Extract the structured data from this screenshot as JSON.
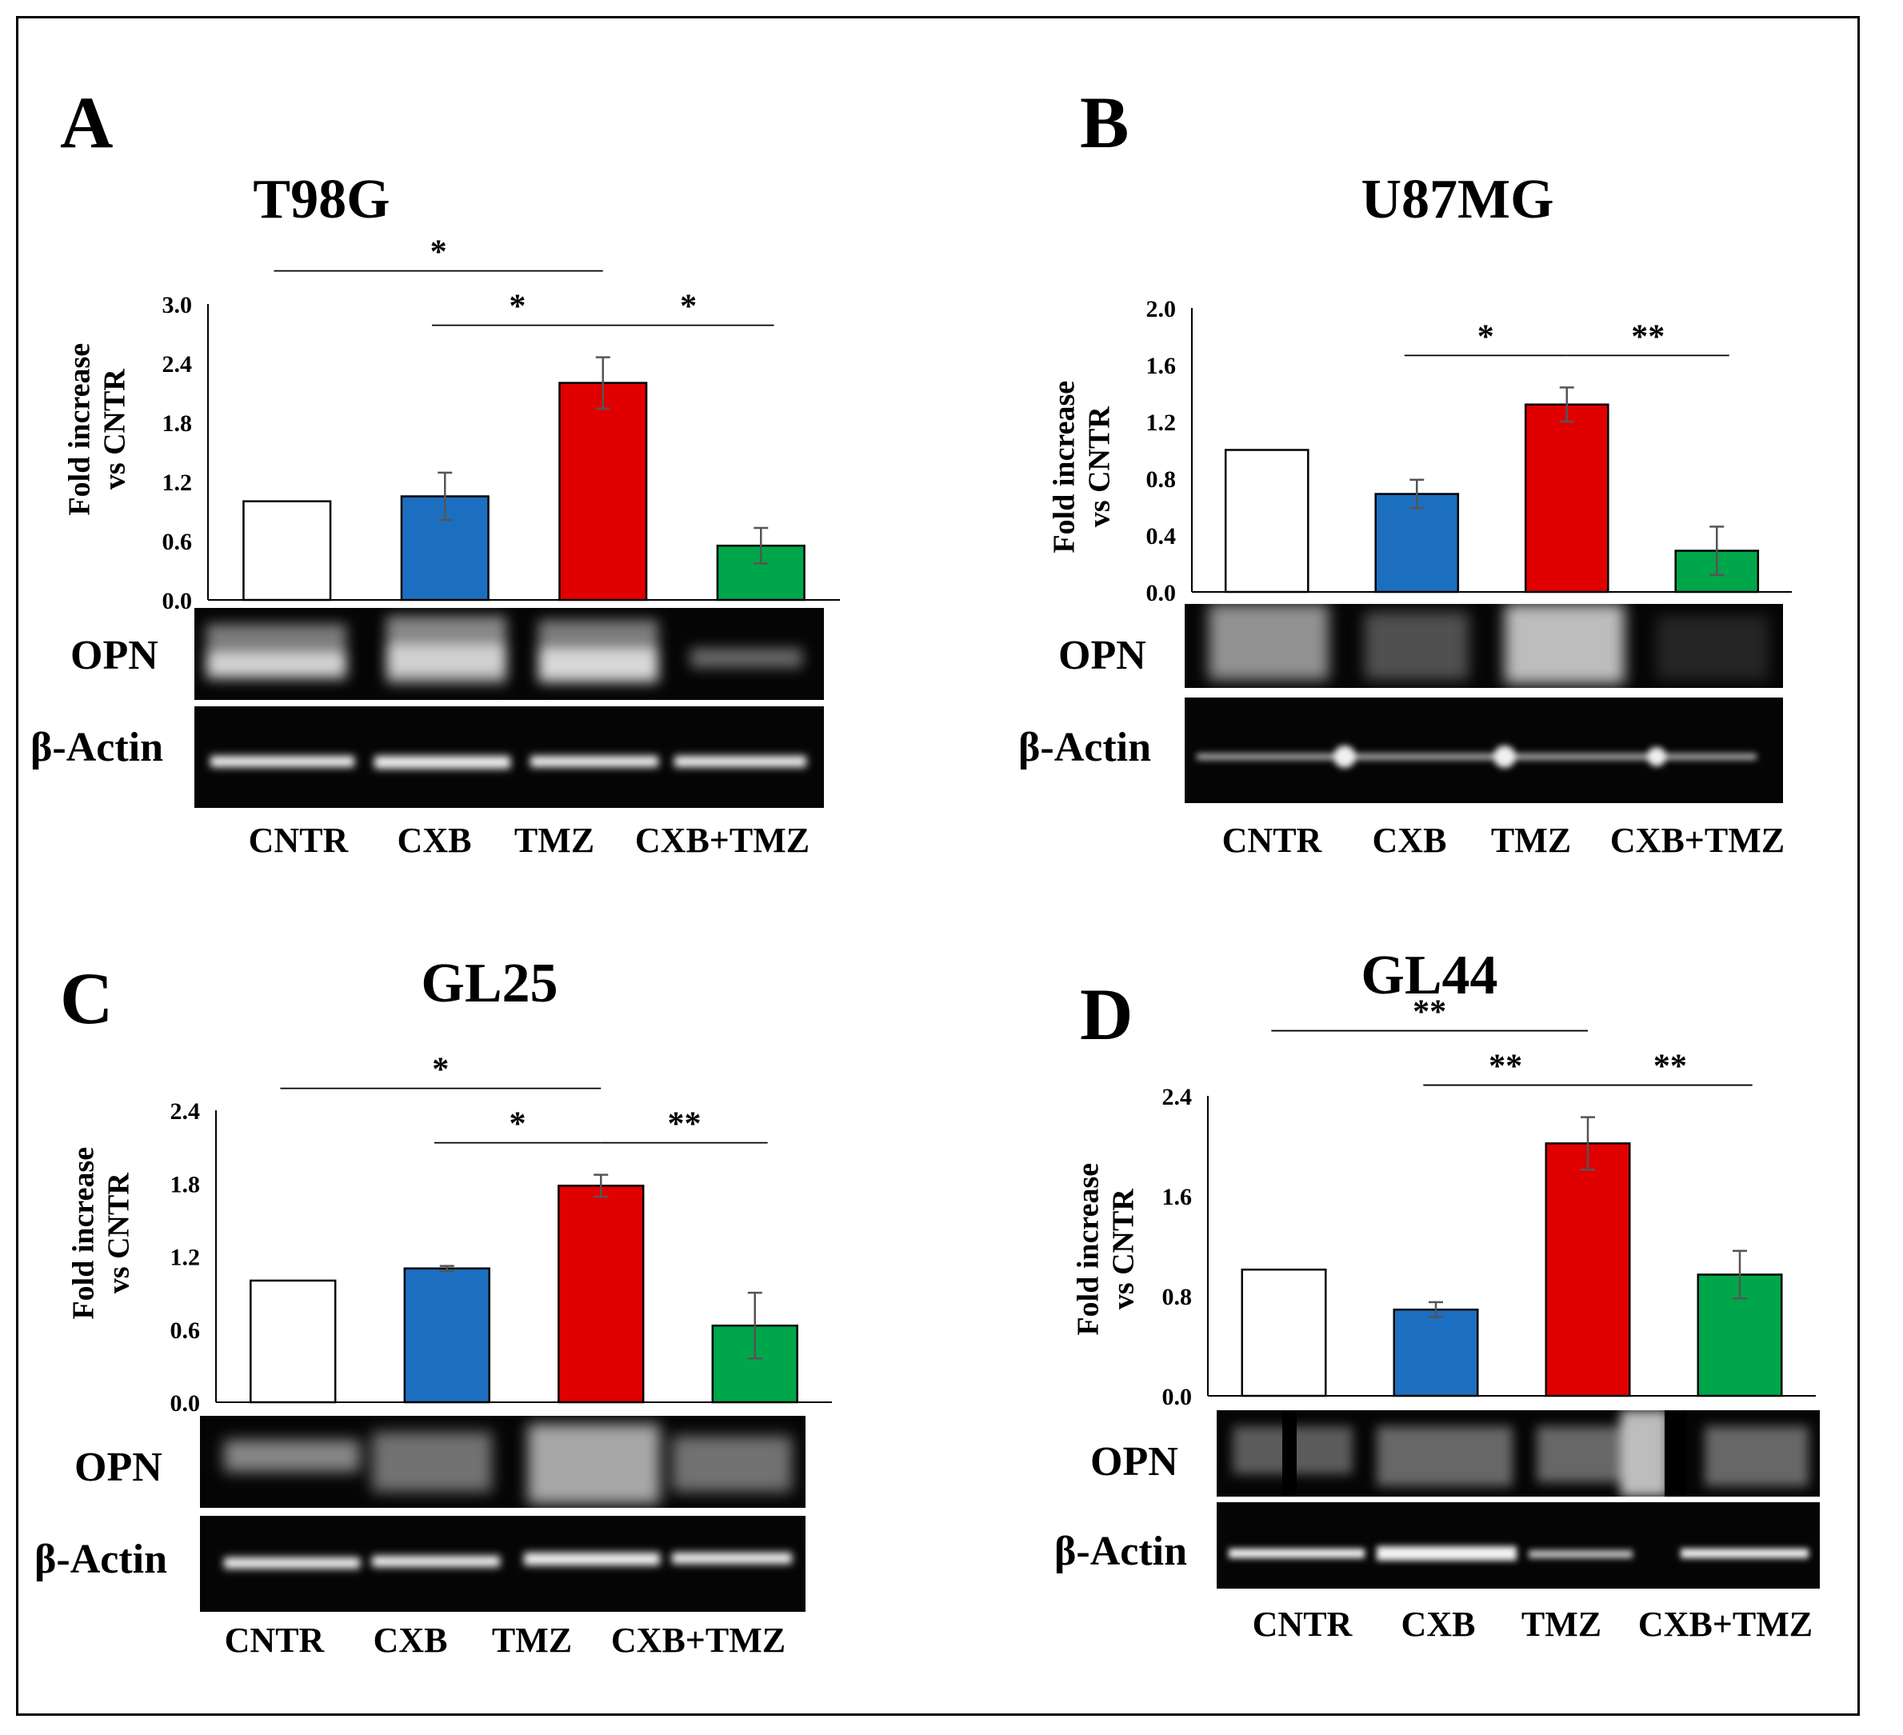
{
  "chart_data": [
    {
      "panel": "A",
      "title": "T98G",
      "type": "bar",
      "ylabel_line1": "Fold increase",
      "ylabel_line2": "vs CNTR",
      "categories": [
        "CNTR",
        "CXB",
        "TMZ",
        "CXB+TMZ"
      ],
      "values": [
        1.0,
        1.05,
        2.2,
        0.55
      ],
      "errors": [
        0.0,
        0.24,
        0.26,
        0.18
      ],
      "colors": [
        "#ffffff",
        "#1c6fc0",
        "#e00000",
        "#00a64a"
      ],
      "ylim": [
        0,
        3.0
      ],
      "yticks": [
        "0.0",
        "0.6",
        "1.2",
        "1.8",
        "2.4",
        "3.0"
      ],
      "significance": [
        {
          "from": 0,
          "to": 2,
          "label": "*",
          "level": 2
        },
        {
          "from": 1,
          "to": 2,
          "label": "*",
          "level": 1
        },
        {
          "from": 2,
          "to": 3,
          "label": "*",
          "level": 1
        }
      ],
      "blot_rows": [
        "OPN",
        "β-Actin"
      ]
    },
    {
      "panel": "B",
      "title": "U87MG",
      "type": "bar",
      "ylabel_line1": "Fold increase",
      "ylabel_line2": "vs CNTR",
      "categories": [
        "CNTR",
        "CXB",
        "TMZ",
        "CXB+TMZ"
      ],
      "values": [
        1.0,
        0.69,
        1.32,
        0.29
      ],
      "errors": [
        0.0,
        0.1,
        0.12,
        0.17
      ],
      "colors": [
        "#ffffff",
        "#1c6fc0",
        "#e00000",
        "#00a64a"
      ],
      "ylim": [
        0,
        2.0
      ],
      "yticks": [
        "0.0",
        "0.4",
        "0.8",
        "1.2",
        "1.6",
        "2.0"
      ],
      "significance": [
        {
          "from": 1,
          "to": 2,
          "label": "*",
          "level": 1
        },
        {
          "from": 2,
          "to": 3,
          "label": "**",
          "level": 1
        }
      ],
      "blot_rows": [
        "OPN",
        "β-Actin"
      ]
    },
    {
      "panel": "C",
      "title": "GL25",
      "type": "bar",
      "ylabel_line1": "Fold increase",
      "ylabel_line2": "vs CNTR",
      "categories": [
        "CNTR",
        "CXB",
        "TMZ",
        "CXB+TMZ"
      ],
      "values": [
        1.0,
        1.1,
        1.78,
        0.63
      ],
      "errors": [
        0.0,
        0.02,
        0.09,
        0.27
      ],
      "colors": [
        "#ffffff",
        "#1c6fc0",
        "#e00000",
        "#00a64a"
      ],
      "ylim": [
        0,
        2.4
      ],
      "yticks": [
        "0.0",
        "0.6",
        "1.2",
        "1.8",
        "2.4"
      ],
      "significance": [
        {
          "from": 0,
          "to": 2,
          "label": "*",
          "level": 2
        },
        {
          "from": 1,
          "to": 2,
          "label": "*",
          "level": 1
        },
        {
          "from": 2,
          "to": 3,
          "label": "**",
          "level": 1
        }
      ],
      "blot_rows": [
        "OPN",
        "β-Actin"
      ]
    },
    {
      "panel": "D",
      "title": "GL44",
      "type": "bar",
      "ylabel_line1": "Fold increase",
      "ylabel_line2": "vs CNTR",
      "categories": [
        "CNTR",
        "CXB",
        "TMZ",
        "CXB+TMZ"
      ],
      "values": [
        1.01,
        0.69,
        2.02,
        0.97
      ],
      "errors": [
        0.0,
        0.06,
        0.21,
        0.19
      ],
      "colors": [
        "#ffffff",
        "#1c6fc0",
        "#e00000",
        "#00a64a"
      ],
      "ylim": [
        0,
        2.4
      ],
      "yticks": [
        "0.0",
        "0.8",
        "1.6",
        "2.4"
      ],
      "significance": [
        {
          "from": 0,
          "to": 2,
          "label": "**",
          "level": 2
        },
        {
          "from": 1,
          "to": 2,
          "label": "**",
          "level": 1
        },
        {
          "from": 2,
          "to": 3,
          "label": "**",
          "level": 1
        }
      ],
      "blot_rows": [
        "OPN",
        "β-Actin"
      ]
    }
  ]
}
